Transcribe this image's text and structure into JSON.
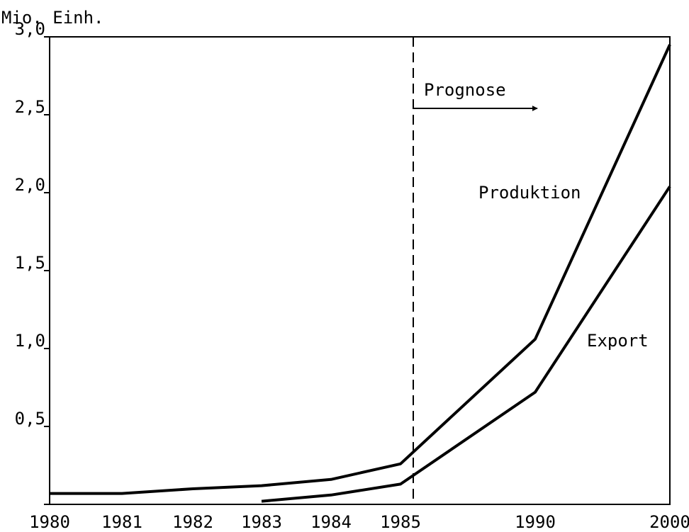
{
  "chart_data": {
    "type": "line",
    "y_label": "Mio. Einh.",
    "categories": [
      "1980",
      "1981",
      "1982",
      "1983",
      "1984",
      "1985",
      "1990",
      "2000"
    ],
    "series": [
      {
        "name": "Produktion",
        "color": "#000000",
        "values": [
          0.07,
          0.07,
          0.1,
          0.12,
          0.16,
          0.26,
          1.06,
          2.95
        ]
      },
      {
        "name": "Export",
        "color": "#000000",
        "values": [
          null,
          null,
          null,
          0.02,
          0.06,
          0.13,
          0.72,
          2.04
        ]
      }
    ],
    "annotation": "Prognose",
    "ylim": [
      0,
      3
    ],
    "yticks": [
      {
        "value": 0.5,
        "label": "0,5"
      },
      {
        "value": 1,
        "label": "1,0"
      },
      {
        "value": 1.5,
        "label": "1,5"
      },
      {
        "value": 2,
        "label": "2,0"
      },
      {
        "value": 2.5,
        "label": "2,5"
      },
      {
        "value": 3,
        "label": "3,0"
      }
    ],
    "grid": false
  }
}
